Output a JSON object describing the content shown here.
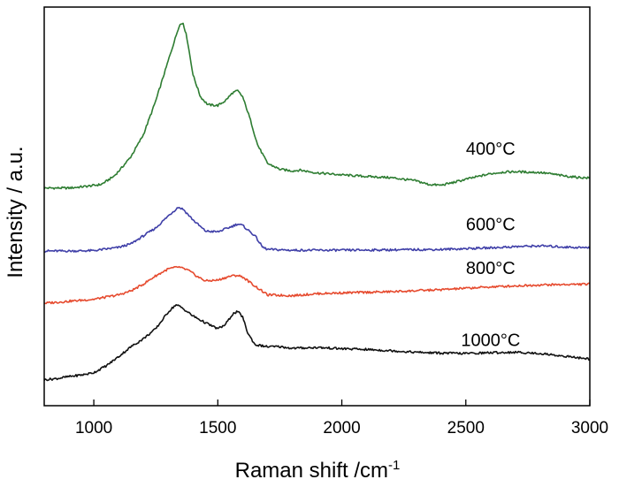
{
  "chart_data": {
    "type": "line",
    "xlabel": "Raman shift /cm",
    "xlabel_sup": "-1",
    "ylabel": "Intensity / a.u.",
    "xlim": [
      800,
      3000
    ],
    "ylim": [
      0,
      100
    ],
    "x_ticks": [
      1000,
      1500,
      2000,
      2500,
      3000
    ],
    "x_tick_labels": [
      "1000",
      "1500",
      "2000",
      "2500",
      "3000"
    ],
    "y_ticks_shown": false,
    "grid": false,
    "legend": "none (series labelled directly on plot)",
    "series": [
      {
        "name": "400°C",
        "color": "#2e7d32",
        "points": [
          [
            800,
            54.6
          ],
          [
            900,
            54.6
          ],
          [
            980,
            55.1
          ],
          [
            1030,
            55.5
          ],
          [
            1080,
            57.5
          ],
          [
            1110,
            59.5
          ],
          [
            1150,
            62.5
          ],
          [
            1200,
            68
          ],
          [
            1250,
            76.5
          ],
          [
            1290,
            84.5
          ],
          [
            1320,
            90.5
          ],
          [
            1345,
            95.5
          ],
          [
            1360,
            96
          ],
          [
            1375,
            92.5
          ],
          [
            1400,
            83
          ],
          [
            1430,
            77.5
          ],
          [
            1460,
            75.5
          ],
          [
            1500,
            75.3
          ],
          [
            1530,
            76.5
          ],
          [
            1560,
            78.5
          ],
          [
            1580,
            79
          ],
          [
            1600,
            77.5
          ],
          [
            1630,
            72
          ],
          [
            1660,
            65.5
          ],
          [
            1700,
            60.8
          ],
          [
            1750,
            59.3
          ],
          [
            1800,
            58.9
          ],
          [
            1830,
            59.1
          ],
          [
            1900,
            58.4
          ],
          [
            2000,
            57.9
          ],
          [
            2100,
            57.5
          ],
          [
            2200,
            57.2
          ],
          [
            2300,
            56.4
          ],
          [
            2350,
            55.5
          ],
          [
            2400,
            55.3
          ],
          [
            2450,
            56
          ],
          [
            2500,
            56.8
          ],
          [
            2550,
            57.5
          ],
          [
            2600,
            58.2
          ],
          [
            2650,
            58.6
          ],
          [
            2700,
            58.7
          ],
          [
            2750,
            58.6
          ],
          [
            2800,
            58.5
          ],
          [
            2850,
            58.1
          ],
          [
            2900,
            57.6
          ],
          [
            2950,
            57.3
          ],
          [
            3000,
            57.1
          ]
        ]
      },
      {
        "name": "600°C",
        "color": "#3f3fa8",
        "points": [
          [
            800,
            38.8
          ],
          [
            900,
            38.8
          ],
          [
            1000,
            38.9
          ],
          [
            1100,
            39.7
          ],
          [
            1150,
            40.6
          ],
          [
            1200,
            42.6
          ],
          [
            1250,
            44.6
          ],
          [
            1300,
            47.6
          ],
          [
            1340,
            49.8
          ],
          [
            1360,
            49.3
          ],
          [
            1400,
            46.6
          ],
          [
            1450,
            43.8
          ],
          [
            1500,
            43.6
          ],
          [
            1550,
            44.8
          ],
          [
            1580,
            45.6
          ],
          [
            1600,
            45.2
          ],
          [
            1650,
            42.6
          ],
          [
            1680,
            39.8
          ],
          [
            1700,
            39.2
          ],
          [
            1800,
            39
          ],
          [
            2000,
            39
          ],
          [
            2200,
            39.1
          ],
          [
            2400,
            39.2
          ],
          [
            2600,
            39.6
          ],
          [
            2700,
            39.9
          ],
          [
            2800,
            40.1
          ],
          [
            2900,
            39.8
          ],
          [
            3000,
            39.6
          ]
        ]
      },
      {
        "name": "800°C",
        "color": "#e64a2e",
        "points": [
          [
            800,
            25.7
          ],
          [
            900,
            26.2
          ],
          [
            1000,
            26.7
          ],
          [
            1100,
            27.8
          ],
          [
            1150,
            28.8
          ],
          [
            1200,
            30.5
          ],
          [
            1250,
            32.6
          ],
          [
            1300,
            34.3
          ],
          [
            1340,
            34.8
          ],
          [
            1380,
            34
          ],
          [
            1420,
            32.3
          ],
          [
            1450,
            31.3
          ],
          [
            1500,
            31.5
          ],
          [
            1550,
            32.5
          ],
          [
            1580,
            32.7
          ],
          [
            1600,
            32.3
          ],
          [
            1650,
            30
          ],
          [
            1700,
            27.8
          ],
          [
            1800,
            27.6
          ],
          [
            1900,
            28.1
          ],
          [
            2000,
            28.3
          ],
          [
            2200,
            28.6
          ],
          [
            2400,
            29.1
          ],
          [
            2600,
            29.8
          ],
          [
            2800,
            30.3
          ],
          [
            3000,
            30.5
          ]
        ]
      },
      {
        "name": "1000°C",
        "color": "#111111",
        "points": [
          [
            800,
            6.5
          ],
          [
            850,
            6.8
          ],
          [
            900,
            7.3
          ],
          [
            960,
            7.8
          ],
          [
            1000,
            8.3
          ],
          [
            1050,
            10
          ],
          [
            1100,
            12.3
          ],
          [
            1150,
            14.8
          ],
          [
            1200,
            16.8
          ],
          [
            1250,
            19.3
          ],
          [
            1300,
            23.5
          ],
          [
            1330,
            25.3
          ],
          [
            1350,
            24.8
          ],
          [
            1400,
            22.5
          ],
          [
            1450,
            20.8
          ],
          [
            1500,
            19.3
          ],
          [
            1530,
            20.3
          ],
          [
            1560,
            23
          ],
          [
            1580,
            23.6
          ],
          [
            1600,
            22.3
          ],
          [
            1620,
            18.3
          ],
          [
            1650,
            15.3
          ],
          [
            1700,
            14.8
          ],
          [
            1750,
            14.8
          ],
          [
            1800,
            14.4
          ],
          [
            1900,
            14.6
          ],
          [
            2000,
            14.3
          ],
          [
            2100,
            14.1
          ],
          [
            2200,
            13.8
          ],
          [
            2300,
            13.4
          ],
          [
            2400,
            13.2
          ],
          [
            2500,
            13.1
          ],
          [
            2600,
            13.3
          ],
          [
            2700,
            13.4
          ],
          [
            2800,
            13.1
          ],
          [
            2900,
            12.4
          ],
          [
            3000,
            11.7
          ]
        ]
      }
    ]
  }
}
